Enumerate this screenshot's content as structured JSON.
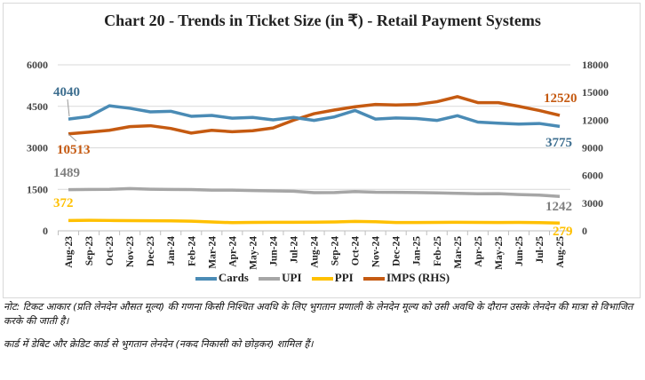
{
  "chart_data": {
    "type": "line",
    "title": "Chart 20 - Trends in Ticket Size (in ₹) - Retail Payment Systems",
    "categories": [
      "Aug-23",
      "Sep-23",
      "Oct-23",
      "Nov-23",
      "Dec-23",
      "Jan-24",
      "Feb-24",
      "Mar-24",
      "Apr-24",
      "May-24",
      "Jun-24",
      "Jul-24",
      "Aug-24",
      "Sep-24",
      "Oct-24",
      "Nov-24",
      "Dec-24",
      "Jan-25",
      "Feb-25",
      "Mar-25",
      "Apr-25",
      "May-25",
      "Jun-25",
      "Jul-25",
      "Aug-25"
    ],
    "ylim": [
      0,
      6000
    ],
    "yticks": [
      "0",
      "1500",
      "3000",
      "4500",
      "6000"
    ],
    "y2lim": [
      0,
      18000
    ],
    "y2ticks": [
      "0",
      "3000",
      "6000",
      "9000",
      "12000",
      "15000",
      "18000"
    ],
    "grid": true,
    "legend": "bottom",
    "series": [
      {
        "name": "Cards",
        "axis": "left",
        "color": "#4a8bb5",
        "values": [
          4040,
          4130,
          4520,
          4430,
          4300,
          4320,
          4140,
          4170,
          4070,
          4100,
          4010,
          4100,
          3990,
          4120,
          4350,
          4040,
          4080,
          4060,
          3990,
          4160,
          3930,
          3890,
          3860,
          3880,
          3775
        ],
        "first_label": "4040",
        "last_label": "3775"
      },
      {
        "name": "UPI",
        "axis": "left",
        "color": "#a6a6a6",
        "values": [
          1489,
          1495,
          1500,
          1530,
          1505,
          1495,
          1490,
          1470,
          1470,
          1455,
          1445,
          1430,
          1380,
          1385,
          1420,
          1395,
          1390,
          1385,
          1370,
          1355,
          1340,
          1345,
          1310,
          1290,
          1242
        ],
        "first_label": "1489",
        "last_label": "1242"
      },
      {
        "name": "PPI",
        "axis": "left",
        "color": "#ffc000",
        "values": [
          372,
          380,
          375,
          370,
          365,
          360,
          350,
          320,
          295,
          305,
          310,
          310,
          312,
          320,
          340,
          330,
          300,
          300,
          305,
          310,
          305,
          300,
          305,
          295,
          279
        ],
        "first_label": "372",
        "last_label": "279"
      },
      {
        "name": "IMPS (RHS)",
        "axis": "right",
        "color": "#c55a11",
        "values": [
          10513,
          10700,
          10900,
          11300,
          11400,
          11100,
          10600,
          10900,
          10750,
          10850,
          11150,
          12000,
          12700,
          13100,
          13450,
          13700,
          13650,
          13700,
          14000,
          14550,
          13900,
          13900,
          13500,
          13050,
          12520
        ],
        "first_label": "10513",
        "last_label": "12520"
      }
    ]
  },
  "notes": [
    "नोट: टिकट आकार (प्रति लेनदेन औसत मूल्य) की गणना किसी निश्चित अवधि के लिए भुगतान प्रणाली के लेनदेन मूल्य को उसी अवधि के दौरान उसके लेनदेन की मात्रा से विभाजित करके की जाती है।",
    "कार्ड में डेबिट और क्रेडिट कार्ड से भुगतान लेनदेन (नकद निकासी को छोड़कर) शामिल हैं।"
  ]
}
